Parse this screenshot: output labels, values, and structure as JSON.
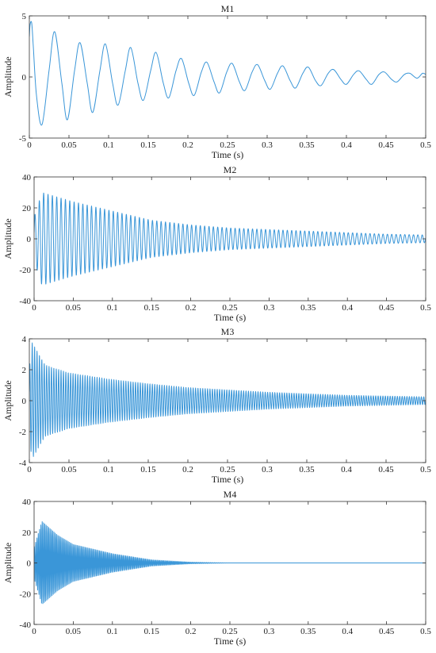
{
  "chart_data": [
    {
      "type": "line",
      "title": "M1",
      "xlabel": "Time (s)",
      "ylabel": "Amplitude",
      "xlim": [
        0,
        0.5
      ],
      "ylim": [
        -5,
        5
      ],
      "xticks": [
        "0",
        "0.05",
        "0.1",
        "0.15",
        "0.2",
        "0.25",
        "0.3",
        "0.35",
        "0.4",
        "0.45",
        "0.5"
      ],
      "yticks": [
        "5",
        "0",
        "-5"
      ],
      "grid": false,
      "series": [
        {
          "color": "#3a96d8",
          "x": [
            0,
            0.001,
            0.003,
            0.005,
            0.009,
            0.016,
            0.025,
            0.032,
            0.041,
            0.048,
            0.057,
            0.064,
            0.073,
            0.08,
            0.089,
            0.096,
            0.105,
            0.112,
            0.121,
            0.128,
            0.137,
            0.144,
            0.153,
            0.16,
            0.169,
            0.176,
            0.185,
            0.192,
            0.201,
            0.208,
            0.217,
            0.224,
            0.233,
            0.24,
            0.249,
            0.256,
            0.265,
            0.272,
            0.281,
            0.288,
            0.297,
            0.304,
            0.313,
            0.32,
            0.329,
            0.336,
            0.345,
            0.352,
            0.361,
            0.368,
            0.377,
            0.384,
            0.393,
            0.4,
            0.409,
            0.416,
            0.425,
            0.432,
            0.441,
            0.448,
            0.457,
            0.464,
            0.473,
            0.48,
            0.489,
            0.496,
            0.5
          ],
          "y": [
            3.3,
            4.3,
            4.4,
            2.5,
            -1.5,
            -3.9,
            0.6,
            3.7,
            -0.5,
            -3.5,
            0.5,
            2.8,
            -0.5,
            -2.9,
            0.5,
            2.7,
            -0.5,
            -2.3,
            0.5,
            2.4,
            -0.5,
            -1.9,
            0.5,
            2.0,
            -0.5,
            -1.7,
            0.5,
            1.5,
            -0.5,
            -1.5,
            0.4,
            1.2,
            -0.4,
            -1.3,
            0.4,
            1.1,
            -0.4,
            -1.1,
            0.4,
            1.0,
            -0.3,
            -1.0,
            0.3,
            0.9,
            -0.3,
            -0.9,
            0.3,
            0.8,
            -0.3,
            -0.7,
            0.3,
            0.6,
            -0.2,
            -0.6,
            0.2,
            0.5,
            -0.2,
            -0.6,
            0.2,
            0.4,
            -0.2,
            -0.4,
            0.2,
            0.3,
            -0.1,
            0.3,
            0.2
          ]
        }
      ]
    },
    {
      "type": "line",
      "title": "M2",
      "xlabel": "Time (s)",
      "ylabel": "Amplitude",
      "xlim": [
        0,
        0.5
      ],
      "ylim": [
        -40,
        40
      ],
      "xticks": [
        "0",
        "0.05",
        "0.1",
        "0.15",
        "0.2",
        "0.25",
        "0.3",
        "0.35",
        "0.4",
        "0.45",
        "0.5"
      ],
      "yticks": [
        "40",
        "20",
        "0",
        "-20",
        "-40"
      ],
      "grid": false,
      "series": [
        {
          "color": "#3a96d8",
          "signal": {
            "frequency_hz": 180,
            "envelope": {
              "t": [
                0,
                0.01,
                0.05,
                0.1,
                0.15,
                0.2,
                0.25,
                0.3,
                0.35,
                0.4,
                0.45,
                0.5
              ],
              "a": [
                14,
                30,
                24,
                18,
                12,
                9,
                7,
                6,
                5,
                4,
                3,
                2.5
              ]
            }
          }
        }
      ]
    },
    {
      "type": "line",
      "title": "M3",
      "xlabel": "Time (s)",
      "ylabel": "Amplitude",
      "xlim": [
        0,
        0.5
      ],
      "ylim": [
        -4,
        4
      ],
      "xticks": [
        "0",
        "0.05",
        "0.1",
        "0.15",
        "0.2",
        "0.25",
        "0.3",
        "0.35",
        "0.4",
        "0.45",
        "0.5"
      ],
      "yticks": [
        "4",
        "2",
        "0",
        "-2",
        "-4"
      ],
      "grid": false,
      "series": [
        {
          "color": "#3a96d8",
          "signal": {
            "frequency_hz": 330,
            "envelope": {
              "t": [
                0,
                0.003,
                0.02,
                0.05,
                0.1,
                0.15,
                0.2,
                0.25,
                0.3,
                0.35,
                0.4,
                0.45,
                0.5
              ],
              "a": [
                2,
                3.8,
                2.3,
                1.8,
                1.4,
                1.1,
                0.85,
                0.7,
                0.55,
                0.45,
                0.35,
                0.3,
                0.25
              ]
            }
          }
        }
      ]
    },
    {
      "type": "line",
      "title": "M4",
      "xlabel": "Time (s)",
      "ylabel": "Amplitude",
      "xlim": [
        0,
        0.5
      ],
      "ylim": [
        -40,
        40
      ],
      "xticks": [
        "0",
        "0.05",
        "0.1",
        "0.15",
        "0.2",
        "0.25",
        "0.3",
        "0.35",
        "0.4",
        "0.45",
        "0.5"
      ],
      "yticks": [
        "40",
        "20",
        "0",
        "-20",
        "-40"
      ],
      "grid": false,
      "series": [
        {
          "color": "#3a96d8",
          "signal": {
            "frequency_hz": 600,
            "envelope": {
              "t": [
                0,
                0.01,
                0.03,
                0.05,
                0.1,
                0.15,
                0.2,
                0.25,
                0.5
              ],
              "a": [
                10,
                27,
                18,
                12,
                6,
                2,
                0.5,
                0,
                0
              ]
            }
          }
        }
      ]
    }
  ]
}
